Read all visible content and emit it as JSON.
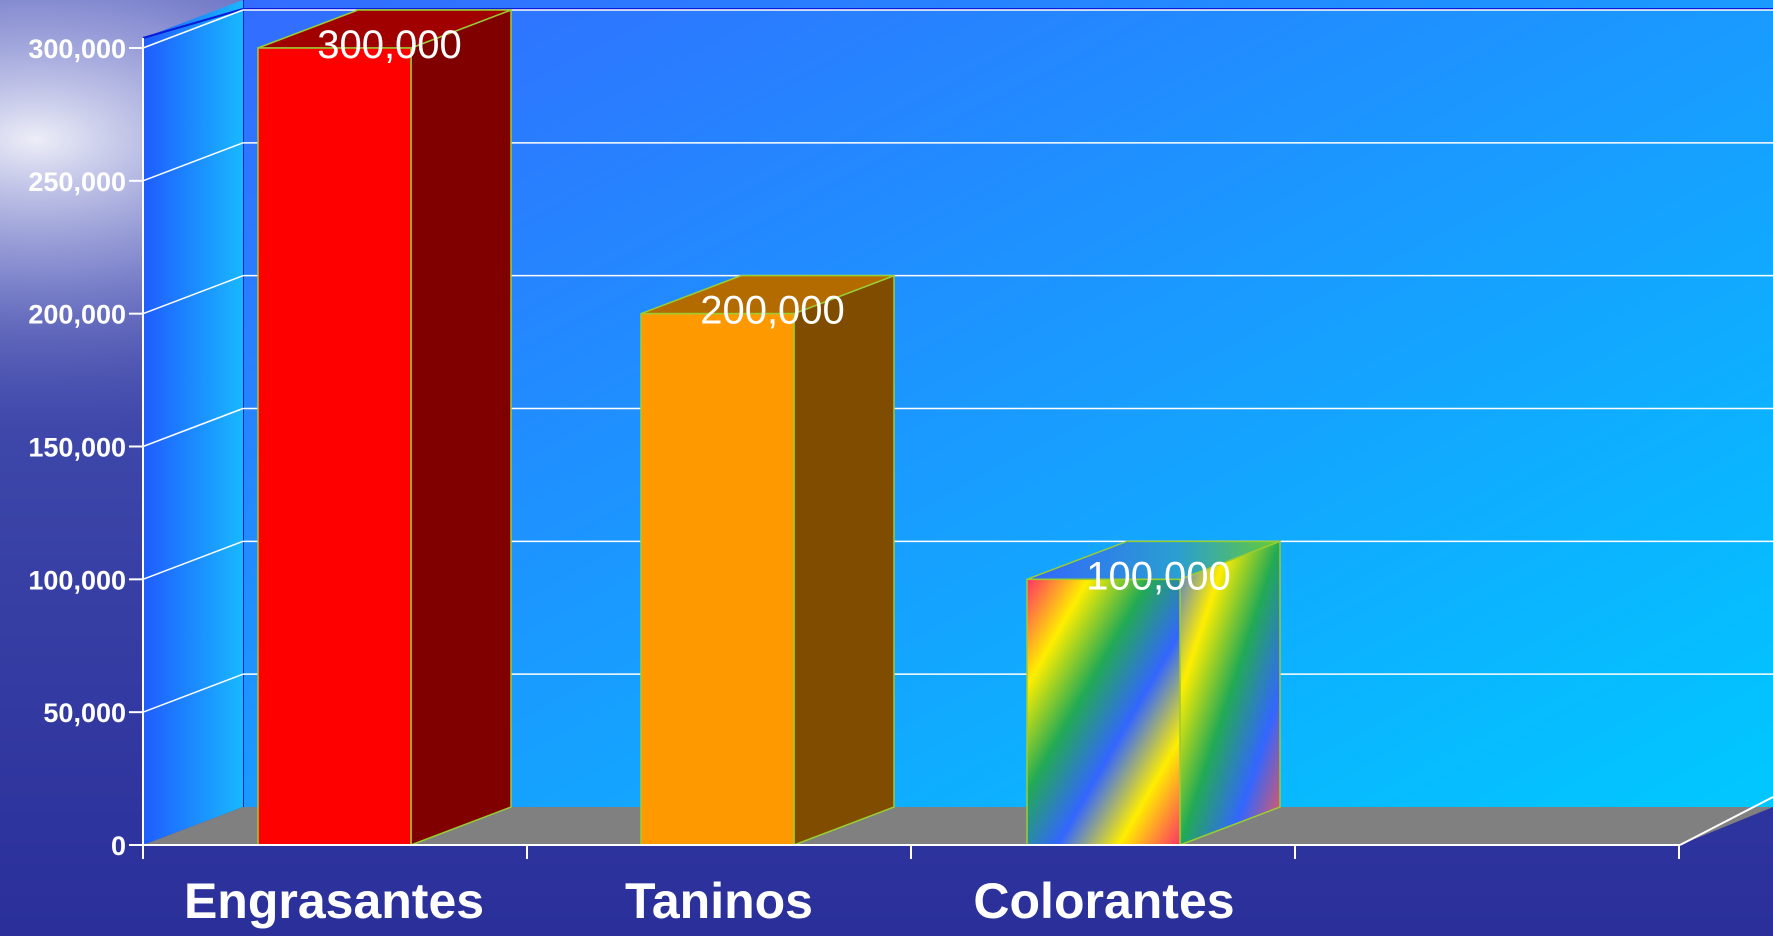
{
  "chart_data": {
    "type": "bar",
    "title": "",
    "xlabel": "",
    "ylabel": "",
    "categories": [
      "Engrasantes",
      "Taninos",
      "Colorantes"
    ],
    "values": [
      300000,
      200000,
      100000
    ],
    "data_labels": [
      "300,000",
      "200,000",
      "100,000"
    ],
    "ylim": [
      0,
      300000
    ],
    "y_ticks": [
      {
        "value": 0,
        "label": "0"
      },
      {
        "value": 50000,
        "label": "50,000"
      },
      {
        "value": 100000,
        "label": "100,000"
      },
      {
        "value": 150000,
        "label": "150,000"
      },
      {
        "value": 200000,
        "label": "200,000"
      },
      {
        "value": 250000,
        "label": "250,000"
      },
      {
        "value": 300000,
        "label": "300,000"
      }
    ],
    "grid": true,
    "legend": "none",
    "style": "3d-column",
    "bar_colors": [
      {
        "front": "#ff0000",
        "side": "#800000",
        "top": "#a00000"
      },
      {
        "front": "#ff9900",
        "side": "#7f4c00",
        "top": "#b36b00"
      },
      {
        "front": "rainbow",
        "side": "rainbow",
        "top": "rainbow"
      }
    ],
    "colors": {
      "wall": "#2f7dff",
      "wall_bottom": "#00c8ff",
      "floor": "#808080",
      "gridline": "#ffffff",
      "bar_edge": "#9acd32",
      "text": "#ffffff",
      "background": "#2a2f9a"
    }
  }
}
